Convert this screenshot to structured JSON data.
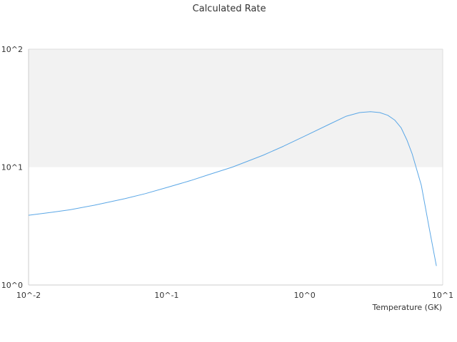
{
  "chart_data": {
    "type": "line",
    "title": "Calculated Rate",
    "xlabel": "Temperature (GK)",
    "ylabel": "",
    "xscale": "log",
    "yscale": "log",
    "xlim": [
      0.01,
      10
    ],
    "ylim": [
      1,
      100
    ],
    "x_ticks": [
      "10^-2",
      "10^-1",
      "10^0",
      "10^1"
    ],
    "y_ticks": [
      "10^0",
      "10^1",
      "10^2"
    ],
    "grid": false,
    "shaded_band": {
      "y_from": 10,
      "y_to": 100,
      "color": "#f2f2f2"
    },
    "legend": "none",
    "series": [
      {
        "color": "#5ba7e6",
        "x": [
          0.01,
          0.015,
          0.02,
          0.03,
          0.05,
          0.07,
          0.1,
          0.15,
          0.2,
          0.3,
          0.5,
          0.7,
          1.0,
          1.5,
          2.0,
          2.5,
          3.0,
          3.5,
          4.0,
          4.5,
          5.0,
          5.5,
          6.0,
          7.0,
          8.0,
          9.0
        ],
        "y": [
          3.9,
          4.15,
          4.35,
          4.75,
          5.4,
          5.95,
          6.7,
          7.7,
          8.6,
          10.0,
          12.6,
          15.0,
          18.3,
          23.0,
          27.0,
          29.0,
          29.5,
          29.0,
          27.5,
          25.0,
          21.5,
          17.0,
          13.0,
          7.0,
          3.0,
          1.45
        ]
      }
    ]
  }
}
